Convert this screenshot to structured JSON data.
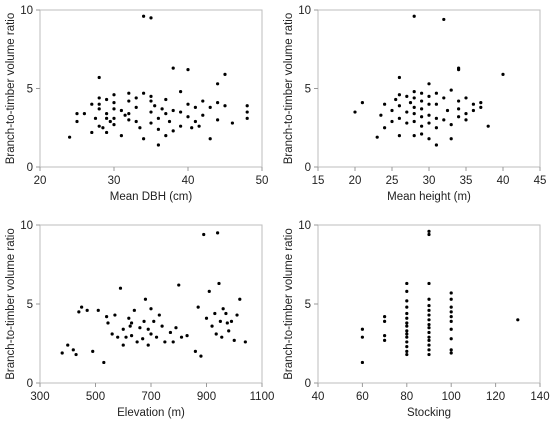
{
  "chart_data": [
    {
      "type": "scatter",
      "xlabel": "Mean DBH (cm)",
      "ylabel": "Branch-to-timber volume ratio",
      "xlim": [
        20,
        50
      ],
      "ylim": [
        0,
        10
      ],
      "xticks": [
        "20",
        "30",
        "40",
        "50"
      ],
      "yticks": [
        "0",
        "5",
        "10"
      ],
      "grid": false,
      "points": [
        [
          24.0,
          1.9
        ],
        [
          25.0,
          3.4
        ],
        [
          25.0,
          2.9
        ],
        [
          26.0,
          3.4
        ],
        [
          27.0,
          4.0
        ],
        [
          27.0,
          2.2
        ],
        [
          27.5,
          3.1
        ],
        [
          28.0,
          5.7
        ],
        [
          28.0,
          4.4
        ],
        [
          28.0,
          4.0
        ],
        [
          28.0,
          3.7
        ],
        [
          28.0,
          2.6
        ],
        [
          28.5,
          2.5
        ],
        [
          29.0,
          4.3
        ],
        [
          29.0,
          3.4
        ],
        [
          29.0,
          3.1
        ],
        [
          29.0,
          2.2
        ],
        [
          29.5,
          2.9
        ],
        [
          30.0,
          4.6
        ],
        [
          30.0,
          4.1
        ],
        [
          30.0,
          3.7
        ],
        [
          30.0,
          3.1
        ],
        [
          30.0,
          2.7
        ],
        [
          31.0,
          3.6
        ],
        [
          31.0,
          2.0
        ],
        [
          31.5,
          3.3
        ],
        [
          32.0,
          4.7
        ],
        [
          32.0,
          4.2
        ],
        [
          32.0,
          3.4
        ],
        [
          32.0,
          3.0
        ],
        [
          33.0,
          4.4
        ],
        [
          33.0,
          3.8
        ],
        [
          33.0,
          2.9
        ],
        [
          33.5,
          2.5
        ],
        [
          34.0,
          9.6
        ],
        [
          34.0,
          4.7
        ],
        [
          34.0,
          1.8
        ],
        [
          35.0,
          9.5
        ],
        [
          35.0,
          4.2
        ],
        [
          35.0,
          3.5
        ],
        [
          35.0,
          2.8
        ],
        [
          35.0,
          4.5
        ],
        [
          35.5,
          3.9
        ],
        [
          36.0,
          3.1
        ],
        [
          36.0,
          2.4
        ],
        [
          36.0,
          1.4
        ],
        [
          36.5,
          3.7
        ],
        [
          37.0,
          4.3
        ],
        [
          37.0,
          3.4
        ],
        [
          37.0,
          2.0
        ],
        [
          37.5,
          2.9
        ],
        [
          38.0,
          6.3
        ],
        [
          38.0,
          3.6
        ],
        [
          38.0,
          2.3
        ],
        [
          39.0,
          4.8
        ],
        [
          39.0,
          3.5
        ],
        [
          39.0,
          2.6
        ],
        [
          40.0,
          6.2
        ],
        [
          40.0,
          4.0
        ],
        [
          40.0,
          3.2
        ],
        [
          40.5,
          2.5
        ],
        [
          41.0,
          3.8
        ],
        [
          41.0,
          2.9
        ],
        [
          41.5,
          2.6
        ],
        [
          42.0,
          4.2
        ],
        [
          42.0,
          3.3
        ],
        [
          43.0,
          3.8
        ],
        [
          43.0,
          1.8
        ],
        [
          44.0,
          5.3
        ],
        [
          44.0,
          4.1
        ],
        [
          44.0,
          3.0
        ],
        [
          45.0,
          5.9
        ],
        [
          45.0,
          3.9
        ],
        [
          46.0,
          2.8
        ],
        [
          48.0,
          3.9
        ],
        [
          48.0,
          3.5
        ],
        [
          48.0,
          3.1
        ]
      ]
    },
    {
      "type": "scatter",
      "xlabel": "Mean height (m)",
      "ylabel": "Branch-to-timber volume ratio",
      "xlim": [
        15,
        45
      ],
      "ylim": [
        0,
        10
      ],
      "xticks": [
        "15",
        "20",
        "25",
        "30",
        "35",
        "40",
        "45"
      ],
      "yticks": [
        "0",
        "5",
        "10"
      ],
      "grid": false,
      "points": [
        [
          20.0,
          3.5
        ],
        [
          21.0,
          4.1
        ],
        [
          23.0,
          1.9
        ],
        [
          23.5,
          3.3
        ],
        [
          24.0,
          4.0
        ],
        [
          24.0,
          2.5
        ],
        [
          25.0,
          3.6
        ],
        [
          25.0,
          2.9
        ],
        [
          25.5,
          4.3
        ],
        [
          26.0,
          5.7
        ],
        [
          26.0,
          4.6
        ],
        [
          26.0,
          3.9
        ],
        [
          26.0,
          3.1
        ],
        [
          26.0,
          2.0
        ],
        [
          27.0,
          4.5
        ],
        [
          27.0,
          3.5
        ],
        [
          27.0,
          2.8
        ],
        [
          27.5,
          4.1
        ],
        [
          28.0,
          9.6
        ],
        [
          28.0,
          4.8
        ],
        [
          28.0,
          4.4
        ],
        [
          28.0,
          3.8
        ],
        [
          28.0,
          3.4
        ],
        [
          28.0,
          2.9
        ],
        [
          28.0,
          2.0
        ],
        [
          29.0,
          4.7
        ],
        [
          29.0,
          4.2
        ],
        [
          29.0,
          3.7
        ],
        [
          29.0,
          3.2
        ],
        [
          29.0,
          2.6
        ],
        [
          29.0,
          2.1
        ],
        [
          30.0,
          5.3
        ],
        [
          30.0,
          4.5
        ],
        [
          30.0,
          4.0
        ],
        [
          30.0,
          3.3
        ],
        [
          30.0,
          2.8
        ],
        [
          30.0,
          1.8
        ],
        [
          31.0,
          4.7
        ],
        [
          31.0,
          4.0
        ],
        [
          31.0,
          3.1
        ],
        [
          31.0,
          2.5
        ],
        [
          31.0,
          1.4
        ],
        [
          32.0,
          9.4
        ],
        [
          32.0,
          4.4
        ],
        [
          32.0,
          3.0
        ],
        [
          32.5,
          3.6
        ],
        [
          33.0,
          4.9
        ],
        [
          33.0,
          2.7
        ],
        [
          33.0,
          1.8
        ],
        [
          34.0,
          6.3
        ],
        [
          34.0,
          6.2
        ],
        [
          34.0,
          4.2
        ],
        [
          34.0,
          3.7
        ],
        [
          34.0,
          3.2
        ],
        [
          35.0,
          4.4
        ],
        [
          35.0,
          3.4
        ],
        [
          35.0,
          3.0
        ],
        [
          36.0,
          4.0
        ],
        [
          36.0,
          3.6
        ],
        [
          37.0,
          4.1
        ],
        [
          37.0,
          3.8
        ],
        [
          38.0,
          2.6
        ],
        [
          40.0,
          5.9
        ]
      ]
    },
    {
      "type": "scatter",
      "xlabel": "Elevation (m)",
      "ylabel": "Branch-to-timber volume ratio",
      "xlim": [
        300,
        1100
      ],
      "ylim": [
        0,
        10
      ],
      "xticks": [
        "300",
        "500",
        "700",
        "900",
        "1100"
      ],
      "yticks": [
        "0",
        "5",
        "10"
      ],
      "grid": false,
      "points": [
        [
          380,
          1.9
        ],
        [
          400,
          2.4
        ],
        [
          420,
          2.1
        ],
        [
          430,
          1.8
        ],
        [
          440,
          4.5
        ],
        [
          450,
          4.8
        ],
        [
          470,
          4.6
        ],
        [
          490,
          2.0
        ],
        [
          510,
          4.6
        ],
        [
          530,
          1.3
        ],
        [
          540,
          4.2
        ],
        [
          545,
          3.8
        ],
        [
          560,
          3.1
        ],
        [
          570,
          4.3
        ],
        [
          580,
          2.9
        ],
        [
          590,
          6.0
        ],
        [
          600,
          3.4
        ],
        [
          600,
          2.4
        ],
        [
          610,
          2.9
        ],
        [
          620,
          4.1
        ],
        [
          625,
          3.6
        ],
        [
          630,
          3.8
        ],
        [
          630,
          3.0
        ],
        [
          640,
          4.6
        ],
        [
          650,
          2.6
        ],
        [
          660,
          3.5
        ],
        [
          670,
          2.8
        ],
        [
          675,
          3.9
        ],
        [
          680,
          5.3
        ],
        [
          690,
          3.4
        ],
        [
          690,
          2.4
        ],
        [
          700,
          4.7
        ],
        [
          700,
          3.1
        ],
        [
          710,
          3.9
        ],
        [
          720,
          2.9
        ],
        [
          730,
          4.3
        ],
        [
          740,
          3.6
        ],
        [
          750,
          2.6
        ],
        [
          770,
          3.2
        ],
        [
          780,
          2.6
        ],
        [
          790,
          3.5
        ],
        [
          800,
          6.2
        ],
        [
          810,
          2.9
        ],
        [
          830,
          3.0
        ],
        [
          860,
          2.0
        ],
        [
          870,
          4.8
        ],
        [
          880,
          1.7
        ],
        [
          890,
          9.4
        ],
        [
          900,
          4.1
        ],
        [
          910,
          5.8
        ],
        [
          920,
          3.6
        ],
        [
          930,
          4.4
        ],
        [
          935,
          3.1
        ],
        [
          940,
          9.5
        ],
        [
          945,
          6.3
        ],
        [
          950,
          3.9
        ],
        [
          955,
          2.9
        ],
        [
          960,
          4.7
        ],
        [
          970,
          4.4
        ],
        [
          975,
          3.8
        ],
        [
          980,
          3.3
        ],
        [
          990,
          3.9
        ],
        [
          1000,
          2.7
        ],
        [
          1010,
          4.3
        ],
        [
          1020,
          5.3
        ],
        [
          1040,
          2.6
        ]
      ]
    },
    {
      "type": "scatter",
      "xlabel": "Stocking",
      "ylabel": "Branch-to-timber volume ratio",
      "xlim": [
        40,
        140
      ],
      "ylim": [
        0,
        10
      ],
      "xticks": [
        "40",
        "60",
        "80",
        "100",
        "120",
        "140"
      ],
      "yticks": [
        "0",
        "5",
        "10"
      ],
      "grid": false,
      "points": [
        [
          60,
          3.4
        ],
        [
          60,
          2.9
        ],
        [
          60,
          1.3
        ],
        [
          70,
          4.2
        ],
        [
          70,
          3.9
        ],
        [
          70,
          3.0
        ],
        [
          70,
          2.7
        ],
        [
          80,
          6.3
        ],
        [
          80,
          5.8
        ],
        [
          80,
          5.2
        ],
        [
          80,
          4.8
        ],
        [
          80,
          4.4
        ],
        [
          80,
          4.1
        ],
        [
          80,
          3.8
        ],
        [
          80,
          3.6
        ],
        [
          80,
          3.3
        ],
        [
          80,
          3.1
        ],
        [
          80,
          2.9
        ],
        [
          80,
          2.6
        ],
        [
          80,
          2.3
        ],
        [
          80,
          2.0
        ],
        [
          80,
          1.8
        ],
        [
          90,
          9.6
        ],
        [
          90,
          9.4
        ],
        [
          90,
          6.3
        ],
        [
          90,
          5.3
        ],
        [
          90,
          4.9
        ],
        [
          90,
          4.6
        ],
        [
          90,
          4.3
        ],
        [
          90,
          4.0
        ],
        [
          90,
          3.7
        ],
        [
          90,
          3.5
        ],
        [
          90,
          3.2
        ],
        [
          90,
          2.9
        ],
        [
          90,
          2.7
        ],
        [
          90,
          2.4
        ],
        [
          90,
          2.1
        ],
        [
          90,
          1.8
        ],
        [
          100,
          5.7
        ],
        [
          100,
          5.3
        ],
        [
          100,
          4.8
        ],
        [
          100,
          4.5
        ],
        [
          100,
          4.2
        ],
        [
          100,
          3.9
        ],
        [
          100,
          3.4
        ],
        [
          100,
          2.8
        ],
        [
          100,
          2.1
        ],
        [
          100,
          1.9
        ],
        [
          130,
          4.0
        ]
      ]
    }
  ]
}
